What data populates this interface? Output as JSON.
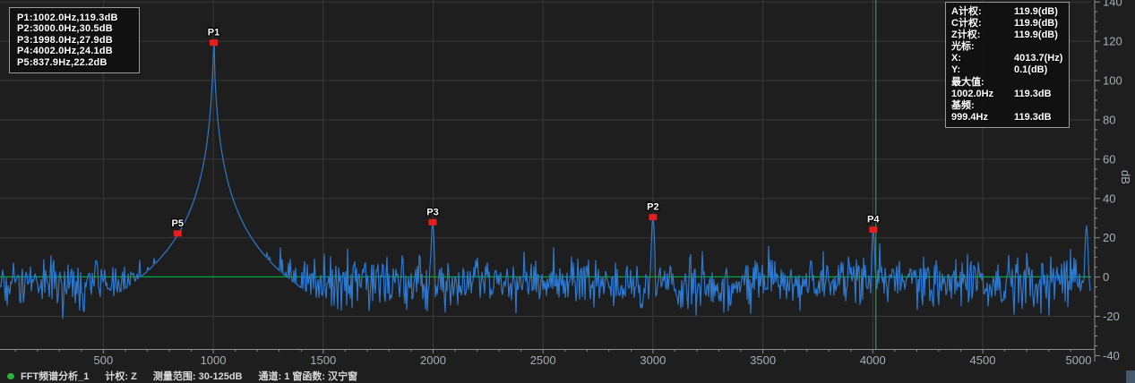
{
  "colors": {
    "background": "#1e1e1e",
    "grid": "#3a3a3a",
    "axis": "#8f8f8f",
    "tick_label": "#a9aeb4",
    "trace": "#2b79d0",
    "cursor": "#00a83c",
    "marker": "#e31f1f",
    "marker_label": "#ffffff",
    "panel_border": "#9b9b9b",
    "status_dot": "#28b43c"
  },
  "peak_legend": {
    "lines": [
      "P1:1002.0Hz,119.3dB",
      "P2:3000.0Hz,30.5dB",
      "P3:1998.0Hz,27.9dB",
      "P4:4002.0Hz,24.1dB",
      "P5:837.9Hz,22.2dB"
    ]
  },
  "info_panel": {
    "rows": [
      {
        "label": "A计权:",
        "value": "119.9(dB)"
      },
      {
        "label": "C计权:",
        "value": "119.9(dB)"
      },
      {
        "label": "Z计权:",
        "value": "119.9(dB)"
      },
      {
        "label": "光标:",
        "value": ""
      },
      {
        "label": "X:",
        "value": "4013.7(Hz)"
      },
      {
        "label": "Y:",
        "value": "0.1(dB)"
      },
      {
        "label": "最大值:",
        "value": ""
      },
      {
        "label": "1002.0Hz",
        "value": "119.3dB"
      },
      {
        "label": "基频:",
        "value": ""
      },
      {
        "label": "999.4Hz",
        "value": "119.3dB"
      }
    ]
  },
  "status_bar": {
    "title": "FFT频谱分析_1",
    "items": [
      "计权: Z",
      "测量范围: 30-125dB",
      "通道: 1 窗函数: 汉宁窗"
    ]
  },
  "chart_data": {
    "type": "line",
    "title": "FFT频谱分析_1",
    "xlabel": "",
    "ylabel": "dB",
    "xlim": [
      30,
      4993
    ],
    "ylim": [
      -36.6,
      141
    ],
    "grid": true,
    "x_tick_labels": [
      500,
      1000,
      1500,
      2000,
      2500,
      3000,
      3500,
      4000,
      4500,
      5000
    ],
    "x_minor_step_hz": 100,
    "y_tick_labels": [
      -40,
      -20,
      0,
      20,
      40,
      60,
      80,
      100,
      120,
      140
    ],
    "y_minor_step_db": 5,
    "series_name": "FFT频谱分析_1",
    "noise_floor": {
      "mean_db": -2,
      "spread_db": 13
    },
    "main_peak": {
      "freq_hz": 1002.0,
      "db": 119.3,
      "skirt_k": 72,
      "skirt_w_hz": 7.5
    },
    "peaks": [
      {
        "label": "P1",
        "freq_hz": 1002.0,
        "db": 119.3
      },
      {
        "label": "P2",
        "freq_hz": 3000.0,
        "db": 30.5
      },
      {
        "label": "P3",
        "freq_hz": 1998.0,
        "db": 27.9
      },
      {
        "label": "P4",
        "freq_hz": 4002.0,
        "db": 24.1
      },
      {
        "label": "P5",
        "freq_hz": 837.9,
        "db": 22.2
      }
    ],
    "edge_spike": {
      "freq_hz": 4972,
      "db": 26
    },
    "cursor": {
      "x_hz": 4013.7,
      "y_db": 0.1
    }
  }
}
